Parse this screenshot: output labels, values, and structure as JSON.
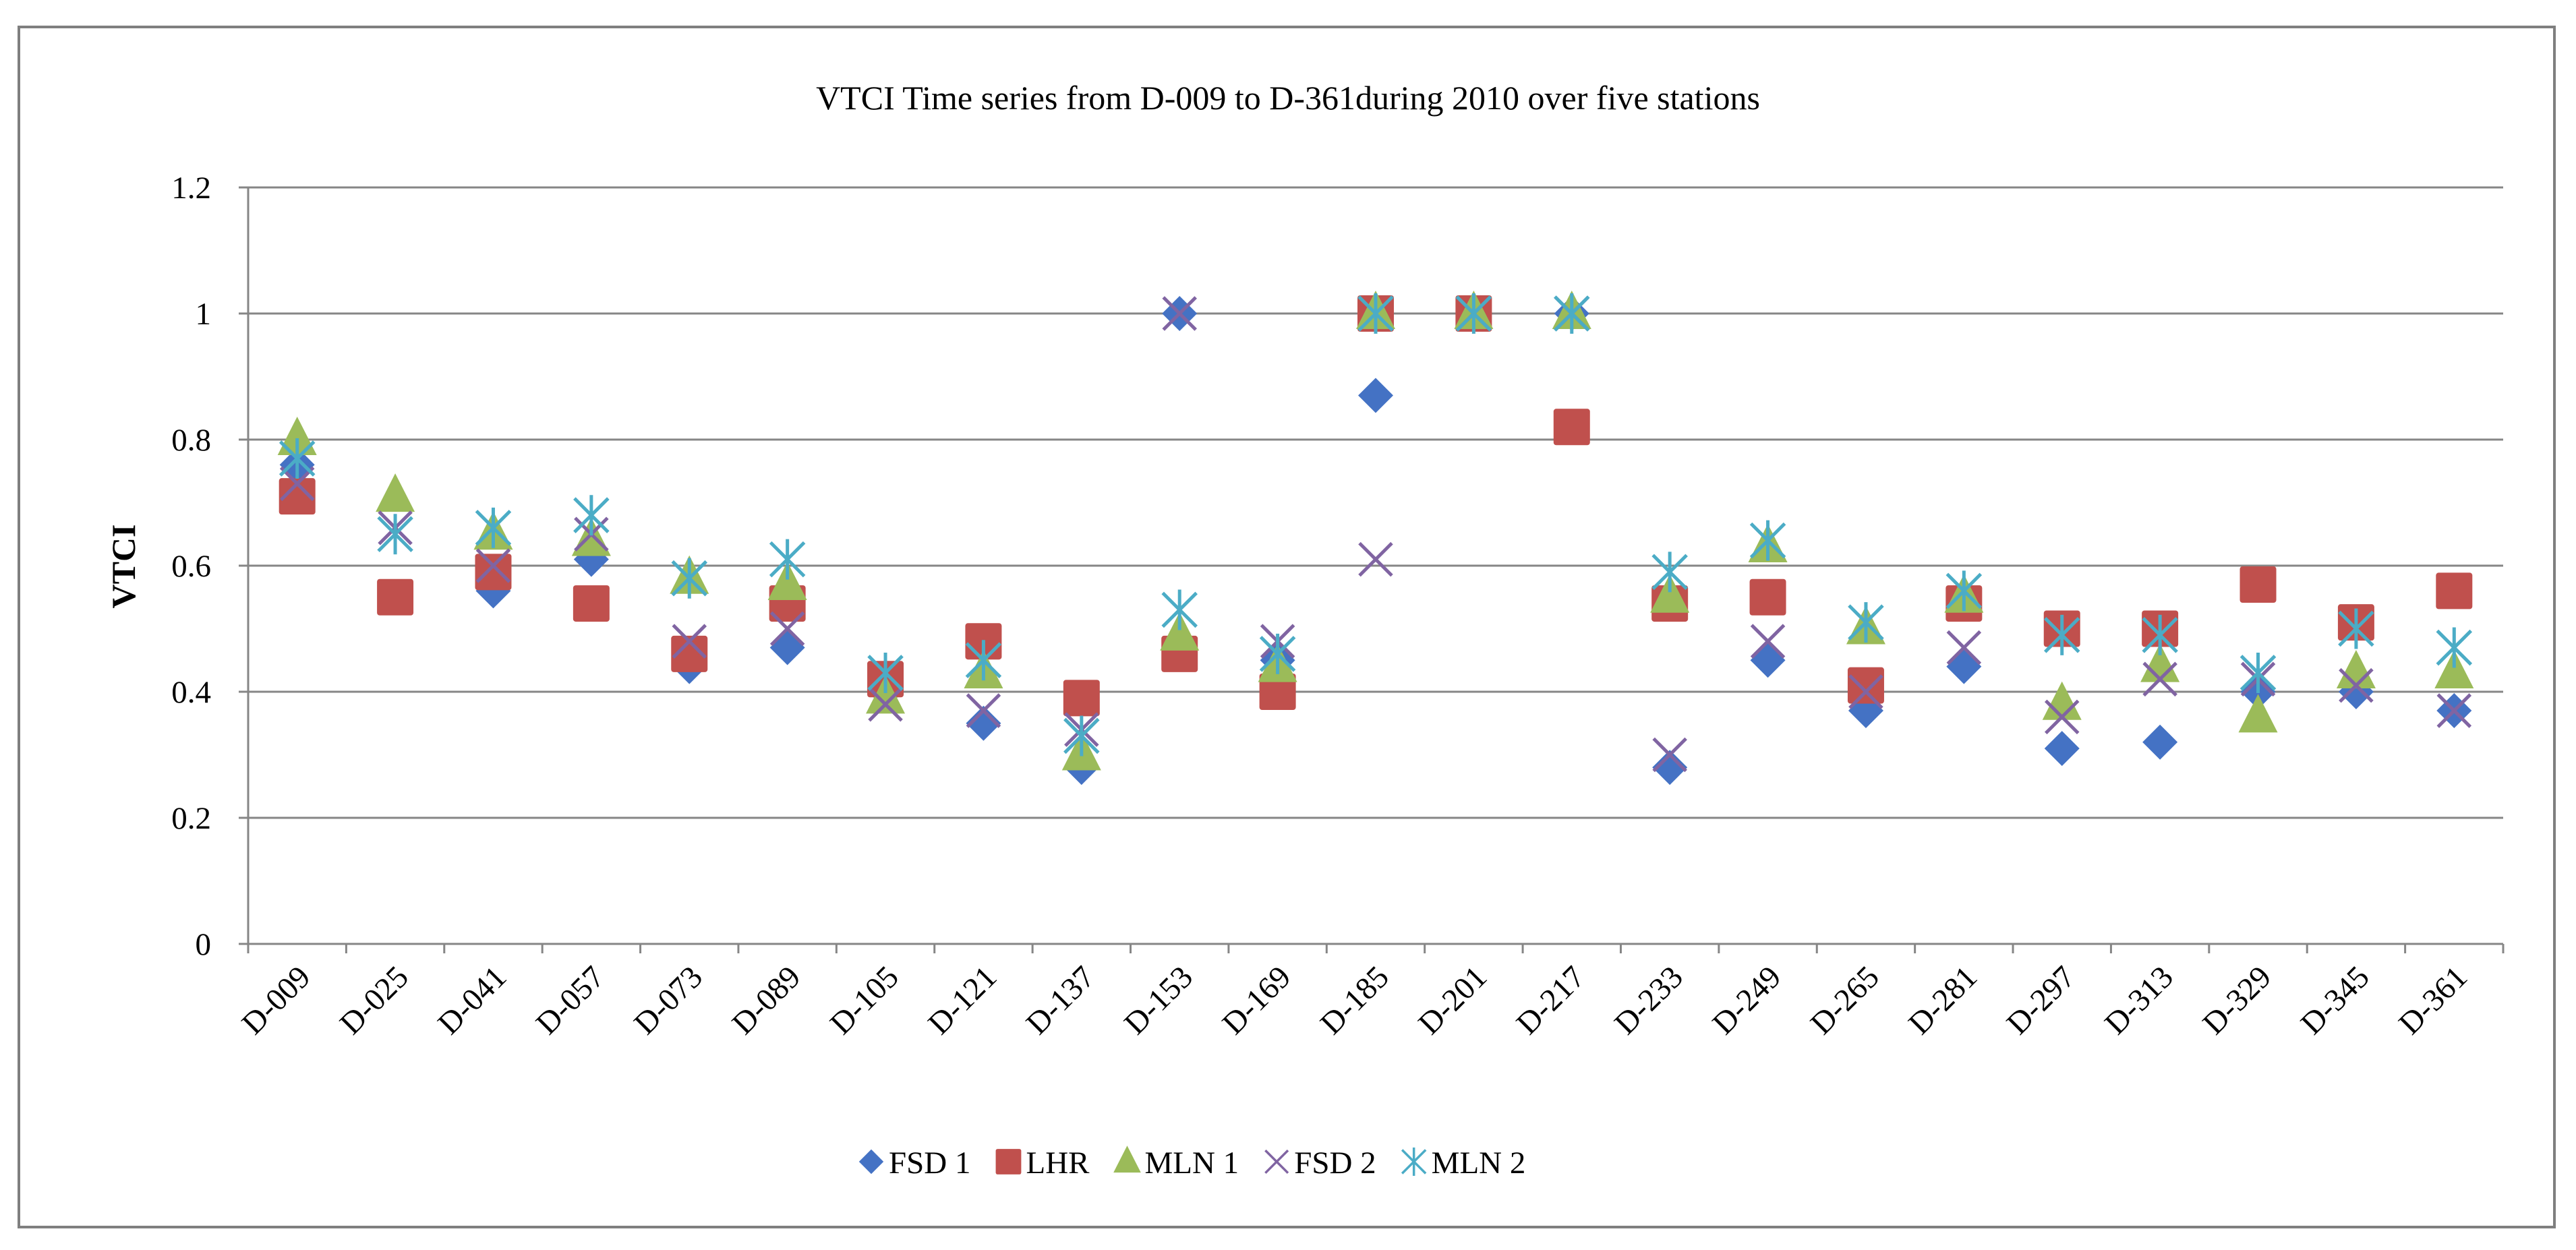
{
  "chart_data": {
    "type": "scatter",
    "title": "VTCI Time series from D-009 to D-361during 2010 over five stations",
    "xlabel": "",
    "ylabel": "VTCI",
    "ylim": [
      0,
      1.2
    ],
    "yticks": [
      0,
      0.2,
      0.4,
      0.6,
      0.8,
      1,
      1.2
    ],
    "ytick_labels": [
      "0",
      "0.2",
      "0.4",
      "0.6",
      "0.8",
      "1",
      "1.2"
    ],
    "grid": true,
    "legend": "bottom",
    "categories": [
      "D-009",
      "D-025",
      "D-041",
      "D-057",
      "D-073",
      "D-089",
      "D-105",
      "D-121",
      "D-137",
      "D-153",
      "D-169",
      "D-185",
      "D-201",
      "D-217",
      "D-233",
      "D-249",
      "D-265",
      "D-281",
      "D-297",
      "D-313",
      "D-329",
      "D-345",
      "D-361"
    ],
    "series": [
      {
        "name": "FSD 1",
        "marker": "diamond",
        "color": "#4472C4",
        "values": [
          0.76,
          0.55,
          0.56,
          0.61,
          0.44,
          0.47,
          0.4,
          0.35,
          0.28,
          1.0,
          0.45,
          0.87,
          1.0,
          1.0,
          0.28,
          0.45,
          0.37,
          0.44,
          0.31,
          0.32,
          0.4,
          0.4,
          0.37
        ]
      },
      {
        "name": "LHR",
        "marker": "square",
        "color": "#C0504D",
        "values": [
          0.71,
          0.55,
          0.59,
          0.54,
          0.46,
          0.54,
          0.42,
          0.48,
          0.39,
          0.46,
          0.4,
          1.0,
          1.0,
          0.82,
          0.54,
          0.55,
          0.41,
          0.54,
          0.5,
          0.5,
          0.57,
          0.51,
          0.56
        ]
      },
      {
        "name": "MLN 1",
        "marker": "triangle",
        "color": "#9BBB59",
        "values": [
          0.8,
          0.71,
          0.65,
          0.64,
          0.58,
          0.57,
          0.39,
          0.43,
          0.3,
          0.49,
          0.44,
          1.0,
          1.0,
          1.0,
          0.55,
          0.63,
          0.5,
          0.55,
          0.38,
          0.44,
          0.36,
          0.43,
          0.43
        ]
      },
      {
        "name": "FSD 2",
        "marker": "x",
        "color": "#8064A2",
        "values": [
          0.73,
          0.66,
          0.6,
          0.65,
          0.48,
          0.5,
          0.38,
          0.37,
          0.34,
          1.0,
          0.48,
          0.61,
          1.0,
          1.0,
          0.3,
          0.48,
          0.4,
          0.47,
          0.36,
          0.42,
          0.42,
          0.41,
          0.37
        ]
      },
      {
        "name": "MLN 2",
        "marker": "asterisk",
        "color": "#4BACC6",
        "values": [
          0.77,
          0.65,
          0.66,
          0.68,
          0.58,
          0.61,
          0.43,
          0.45,
          0.33,
          0.53,
          0.46,
          1.0,
          1.0,
          1.0,
          0.59,
          0.64,
          0.51,
          0.56,
          0.49,
          0.49,
          0.43,
          0.5,
          0.47
        ]
      }
    ]
  }
}
